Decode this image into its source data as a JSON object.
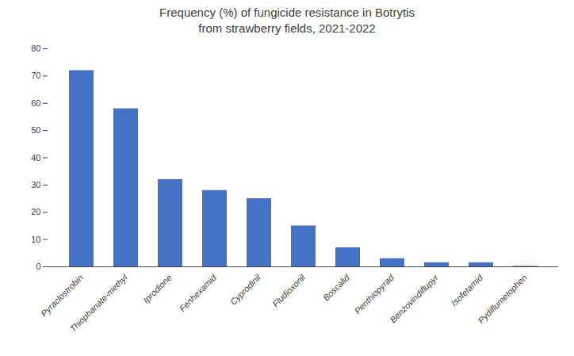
{
  "chart_data": {
    "type": "bar",
    "title": "Frequency (%) of fungicide resistance in Botrytis\nfrom strawberry fields, 2021-2022",
    "categories": [
      "Pyraclostrobin",
      "Thiophanate-methyl",
      "Iprodione",
      "Fenhexamid",
      "Cyprodinil",
      "Fludioxonil",
      "Boscalid",
      "Penthiopyrad",
      "Benzovindiflupyr",
      "Isofetamid",
      "Pydiflumetophen"
    ],
    "values": [
      72,
      58,
      32,
      28,
      25,
      15,
      7,
      3,
      1.5,
      1.5,
      0.2
    ],
    "color": "#4472C4",
    "ylim": [
      0,
      80
    ],
    "yticks": [
      0,
      10,
      20,
      30,
      40,
      50,
      60,
      70,
      80
    ],
    "grid": false
  }
}
